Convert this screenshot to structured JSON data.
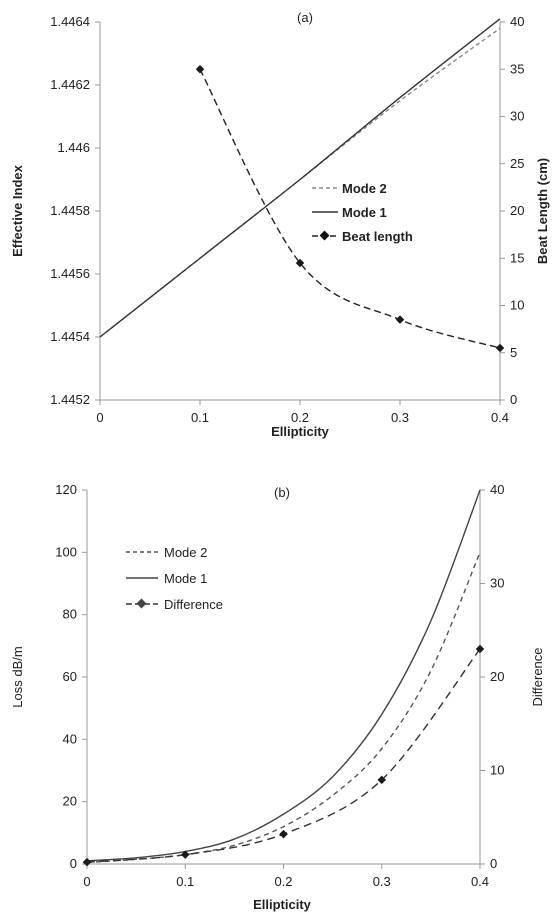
{
  "chart_data": [
    {
      "type": "line",
      "panel_label": "(a)",
      "xlabel": "Ellipticity",
      "ylabel": "Effective Index",
      "y2label": "Beat Length (cm)",
      "xlim": [
        0,
        0.4
      ],
      "ylim": [
        1.4452,
        1.4464
      ],
      "y2lim": [
        0,
        40
      ],
      "x_ticks": [
        "0",
        "0.1",
        "0.2",
        "0.3",
        "0.4"
      ],
      "y_ticks": [
        "1.4452",
        "1.4454",
        "1.4456",
        "1.4458",
        "1.446",
        "1.4462",
        "1.4464"
      ],
      "y2_ticks": [
        "0",
        "5",
        "10",
        "15",
        "20",
        "25",
        "30",
        "35",
        "40"
      ],
      "legend_position": "center-right",
      "series": [
        {
          "name": "Mode 2",
          "axis": "left",
          "style": "dashed",
          "color": "#888888",
          "x": [
            0,
            0.1,
            0.2,
            0.3,
            0.4
          ],
          "y": [
            1.4454,
            1.44565,
            1.4459,
            1.44615,
            1.44638
          ]
        },
        {
          "name": "Mode 1",
          "axis": "left",
          "style": "solid",
          "color": "#333333",
          "x": [
            0,
            0.1,
            0.2,
            0.3,
            0.4
          ],
          "y": [
            1.4454,
            1.44565,
            1.4459,
            1.44616,
            1.44641
          ]
        },
        {
          "name": "Beat length",
          "axis": "right",
          "style": "dashed-marker",
          "color": "#222222",
          "x": [
            0.1,
            0.2,
            0.3,
            0.4
          ],
          "y": [
            35,
            14.5,
            8.5,
            5.5
          ]
        }
      ]
    },
    {
      "type": "line",
      "panel_label": "(b)",
      "xlabel": "Ellipticity",
      "ylabel": "Loss  dB/m",
      "y2label": "Difference",
      "xlim": [
        0,
        0.4
      ],
      "ylim": [
        0,
        120
      ],
      "y2lim": [
        0,
        40
      ],
      "x_ticks": [
        "0",
        "0.1",
        "0.2",
        "0.3",
        "0.4"
      ],
      "y_ticks": [
        "0",
        "20",
        "40",
        "60",
        "80",
        "100",
        "120"
      ],
      "y2_ticks": [
        "0",
        "10",
        "20",
        "30",
        "40"
      ],
      "legend_position": "top-left",
      "series": [
        {
          "name": "Mode 2",
          "axis": "left",
          "style": "dashed",
          "color": "#555555",
          "x": [
            0,
            0.05,
            0.1,
            0.15,
            0.2,
            0.25,
            0.3,
            0.35,
            0.4
          ],
          "y": [
            0.5,
            1.5,
            3,
            6,
            12,
            22,
            37,
            62,
            100
          ]
        },
        {
          "name": "Mode 1",
          "axis": "left",
          "style": "solid",
          "color": "#444444",
          "x": [
            0,
            0.05,
            0.1,
            0.15,
            0.2,
            0.25,
            0.3,
            0.35,
            0.4
          ],
          "y": [
            1,
            2,
            4,
            8,
            16,
            28,
            48,
            78,
            120
          ]
        },
        {
          "name": "Difference",
          "axis": "right",
          "style": "dashed-marker",
          "color": "#333333",
          "x": [
            0,
            0.1,
            0.2,
            0.3,
            0.4
          ],
          "y": [
            0.2,
            1,
            3.2,
            9,
            23
          ]
        }
      ]
    }
  ]
}
